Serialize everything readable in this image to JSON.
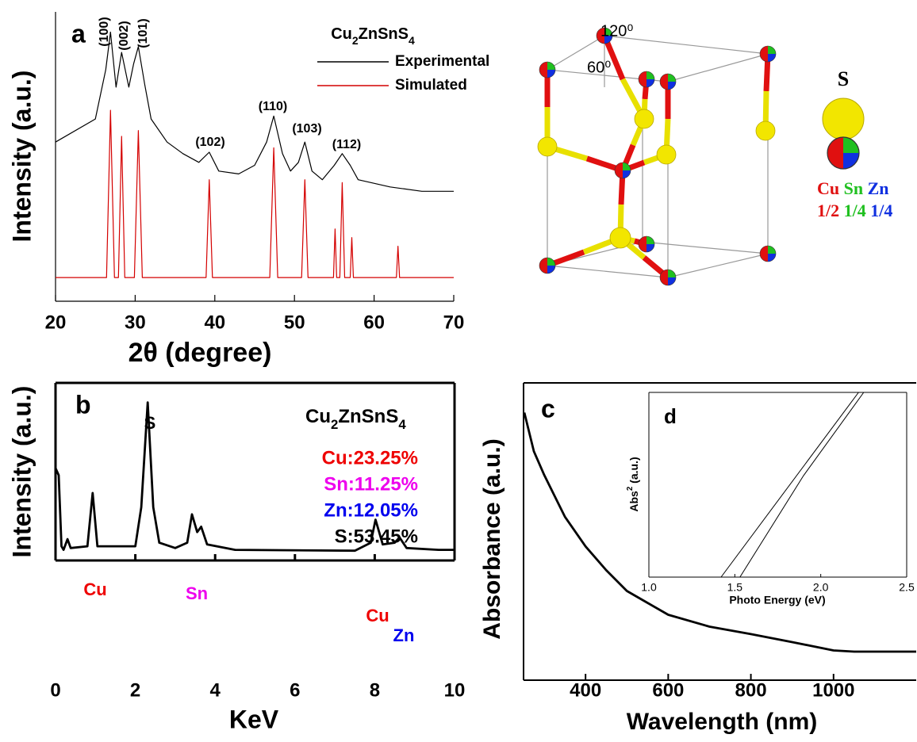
{
  "chart_data": [
    {
      "type": "line",
      "panel": "a",
      "xlabel": "2θ (degree)",
      "ylabel": "Intensity (a.u.)",
      "legend_title": "Cu2ZnSnS4",
      "xlim": [
        20,
        70
      ],
      "xticks": [
        20,
        30,
        40,
        50,
        60,
        70
      ],
      "ylim": [
        0,
        100
      ],
      "annotations": [
        {
          "text": "(100)"
        },
        {
          "text": "(002)"
        },
        {
          "text": "(101)"
        },
        {
          "text": "(102)"
        },
        {
          "text": "(110)"
        },
        {
          "text": "(103)"
        },
        {
          "text": "(112)"
        }
      ],
      "series": [
        {
          "name": "Experimental",
          "color": "#000000",
          "x": [
            20,
            25,
            26.3,
            26.9,
            27.6,
            28.3,
            29.2,
            29.8,
            30.4,
            31.2,
            32,
            34,
            36,
            38,
            39.3,
            40.5,
            43,
            45,
            46.5,
            47.4,
            48.5,
            49.5,
            50.5,
            51.3,
            52.2,
            53.5,
            55,
            56,
            57,
            58,
            62,
            66,
            70
          ],
          "values": [
            55,
            63,
            80,
            93,
            74,
            86,
            74,
            82,
            88,
            75,
            63,
            55,
            51,
            48,
            51.5,
            45,
            44,
            47,
            55,
            64,
            51,
            45,
            48,
            55,
            45,
            42,
            47,
            51,
            47,
            42,
            39.5,
            38,
            38
          ]
        },
        {
          "name": "Simulated",
          "color": "#d40000",
          "x": [
            20,
            26.4,
            26.9,
            27.4,
            27.9,
            28.3,
            28.7,
            29.9,
            30.4,
            30.9,
            38.9,
            39.3,
            39.7,
            46.9,
            47.4,
            47.9,
            50.9,
            51.3,
            51.7,
            54.9,
            55.1,
            55.3,
            55.7,
            56,
            56.3,
            57,
            57.2,
            57.4,
            62.8,
            63,
            63.2,
            70
          ],
          "values": [
            8.2,
            8.2,
            66,
            8.2,
            8.2,
            57,
            8.2,
            8.2,
            59,
            8.2,
            8.2,
            42,
            8.2,
            8.2,
            53,
            8.2,
            8.2,
            42,
            8.2,
            8.2,
            25,
            8.2,
            8.2,
            41,
            8.2,
            8.2,
            22,
            8.2,
            8.2,
            19,
            8.2,
            8.2
          ]
        }
      ]
    },
    {
      "type": "line",
      "panel": "b",
      "xlabel": "KeV",
      "ylabel": "Intensity (a.u.)",
      "xlim": [
        0,
        10
      ],
      "xticks": [
        0,
        2,
        4,
        6,
        8,
        10
      ],
      "ylim": [
        0,
        100
      ],
      "annotations": [
        {
          "text": "Cu2ZnSnS4",
          "color": "#000000"
        },
        {
          "text": "Cu:23.25%",
          "color": "#ee0000"
        },
        {
          "text": "Sn:11.25%",
          "color": "#ee00ee"
        },
        {
          "text": "Zn:12.05%",
          "color": "#0000ee"
        },
        {
          "text": "S:53.45%",
          "color": "#000000"
        },
        {
          "text": "S",
          "color": "#000000"
        },
        {
          "text": "Cu",
          "color": "#ee0000"
        },
        {
          "text": "Sn",
          "color": "#ee00ee"
        },
        {
          "text": "Cu",
          "color": "#ee0000"
        },
        {
          "text": "Zn",
          "color": "#0000ee"
        }
      ],
      "series": [
        {
          "color": "#000000",
          "x": [
            0,
            0.08,
            0.15,
            0.2,
            0.3,
            0.38,
            0.8,
            0.93,
            1.05,
            1.5,
            2.0,
            2.15,
            2.31,
            2.45,
            2.6,
            3.0,
            3.3,
            3.42,
            3.55,
            3.65,
            3.8,
            4.5,
            7.5,
            7.9,
            8.02,
            8.2,
            8.5,
            8.62,
            8.8,
            9.6,
            10
          ],
          "values": [
            52,
            48,
            8,
            6,
            12,
            7,
            8,
            38,
            8,
            8,
            8,
            30,
            89,
            30,
            10,
            7,
            10,
            26,
            16,
            19,
            9,
            6,
            5.5,
            10,
            23,
            9,
            10,
            13,
            7,
            6,
            6
          ]
        }
      ]
    },
    {
      "type": "line",
      "panel": "c",
      "xlabel": "Wavelength (nm)",
      "ylabel": "Absorbance (a.u.)",
      "xlim": [
        250,
        1200
      ],
      "xticks": [
        400,
        600,
        800,
        1000
      ],
      "ylim": [
        0,
        100
      ],
      "series": [
        {
          "color": "#000000",
          "x": [
            252,
            275,
            300,
            350,
            400,
            450,
            500,
            550,
            600,
            700,
            800,
            900,
            1000,
            1050,
            1100,
            1200
          ],
          "values": [
            90,
            77,
            69,
            55,
            45,
            37,
            30,
            26,
            22,
            18,
            15.5,
            12.8,
            10,
            9.6,
            9.6,
            9.6
          ]
        }
      ]
    },
    {
      "type": "line",
      "panel": "d",
      "xlabel": "Photo Energy (eV)",
      "ylabel": "Abs2 (a.u.)",
      "xlim": [
        1,
        2.5
      ],
      "xticks": [
        {
          "value": 1,
          "label": "1.0"
        },
        1.5,
        {
          "value": 2,
          "label": "2.0"
        },
        2.5
      ],
      "ylim": [
        0,
        100
      ],
      "series": [
        {
          "color": "#000000",
          "x": [
            1.53,
            1.9,
            2.25
          ],
          "values": [
            0,
            55,
            100
          ]
        },
        {
          "color": "#000000",
          "x": [
            1.42,
            2.22
          ],
          "values": [
            0,
            100
          ]
        }
      ]
    }
  ],
  "diagram": {
    "angle_top": "120⁰",
    "angle_side": "60⁰",
    "legend_atom": "S",
    "elements": [
      "Cu",
      "Sn",
      "Zn"
    ],
    "fractions": [
      "1/2",
      "1/4",
      "1/4"
    ]
  }
}
